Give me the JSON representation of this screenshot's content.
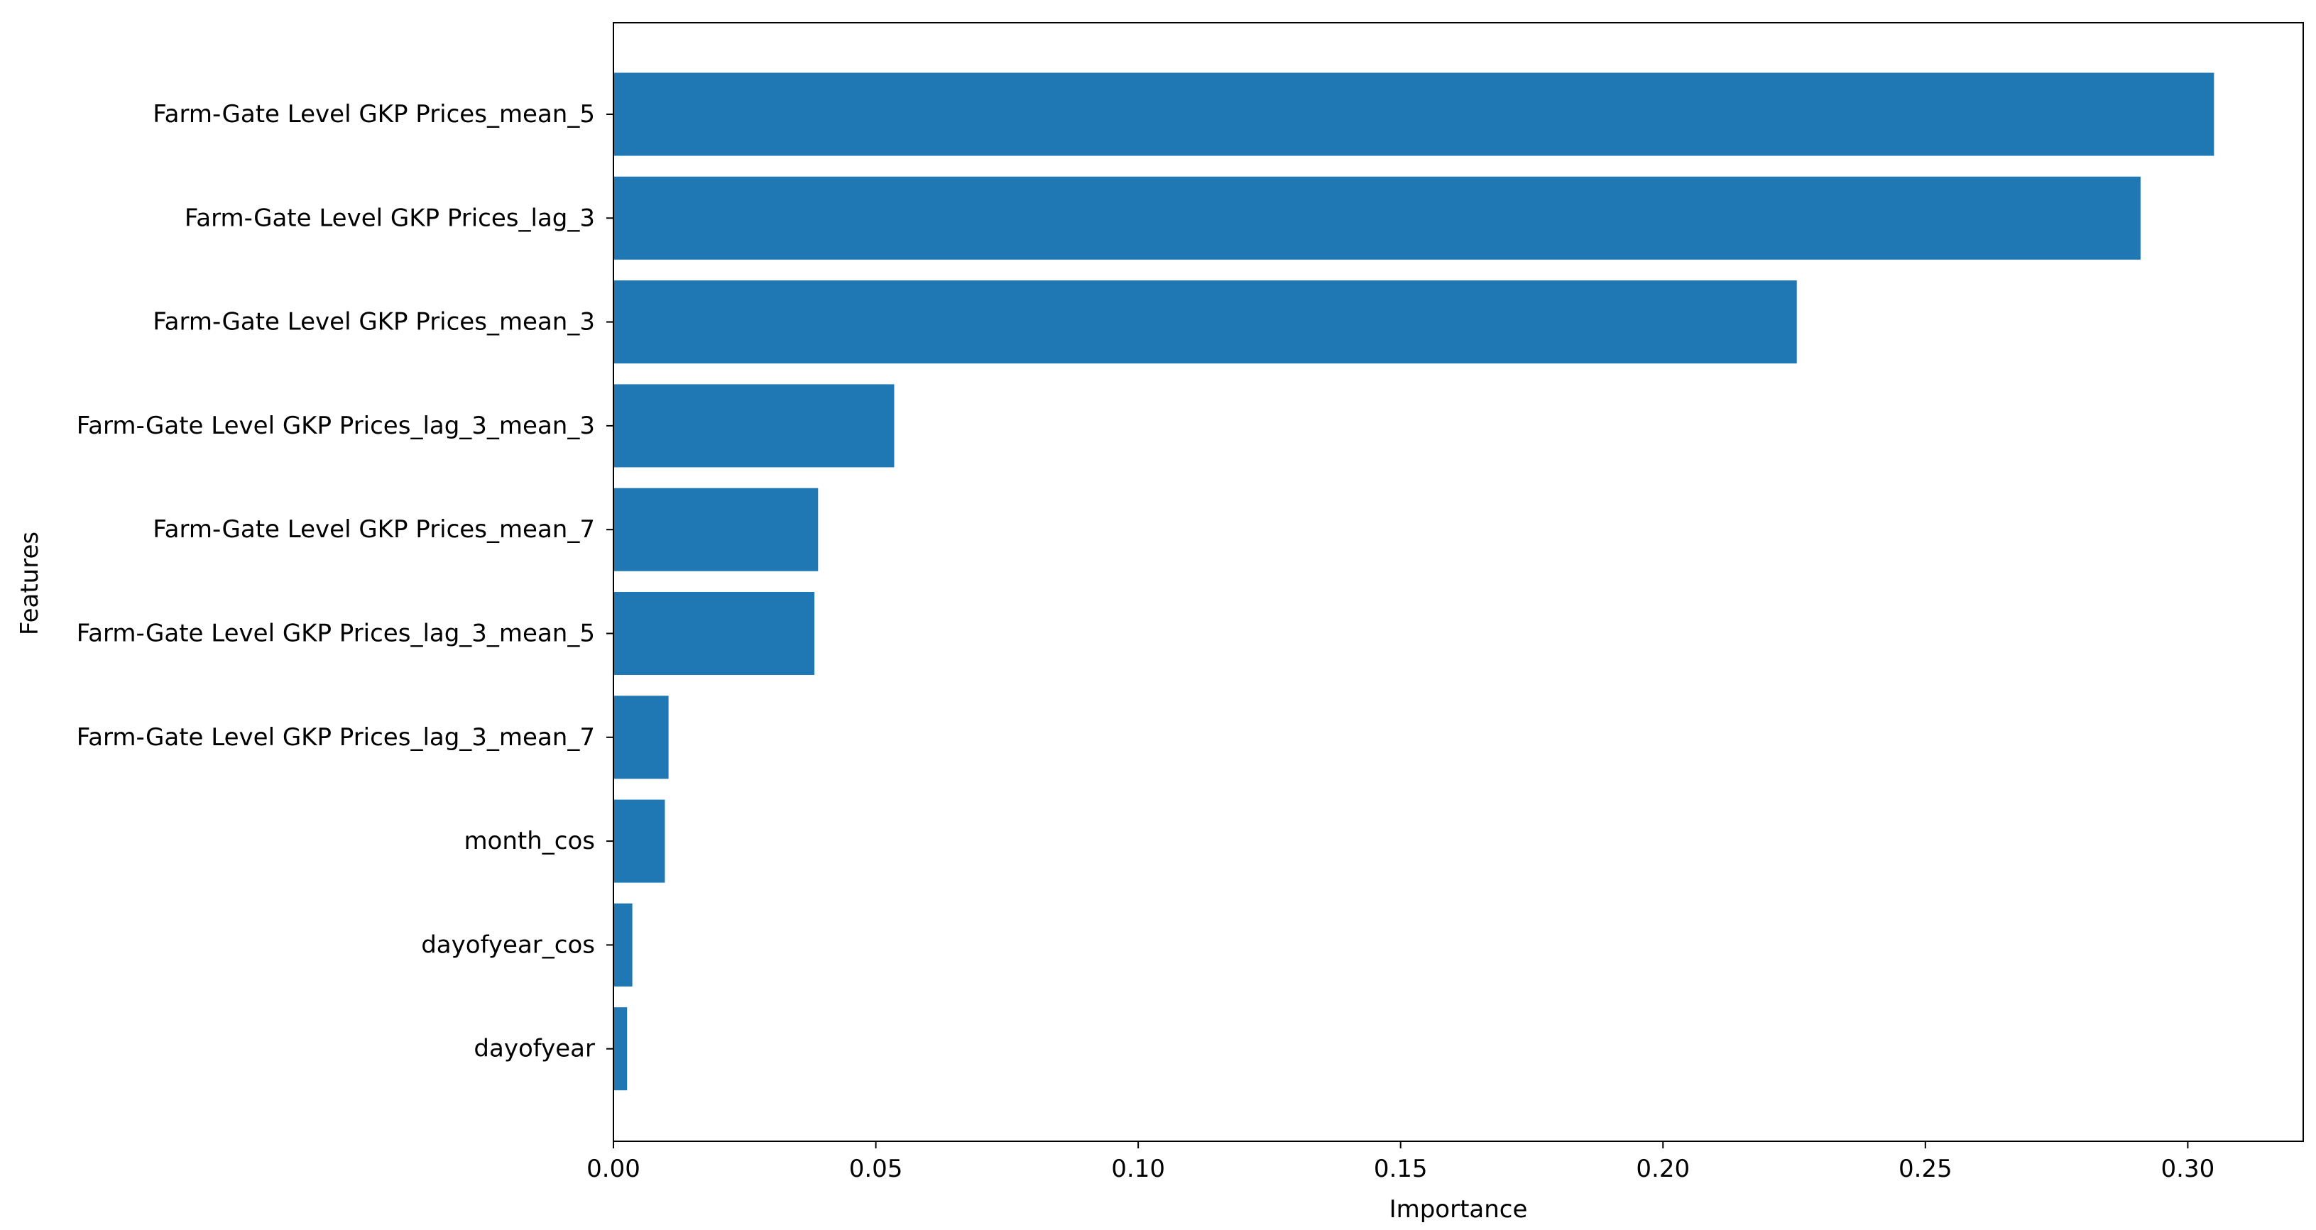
{
  "chart_data": {
    "type": "bar",
    "orientation": "horizontal",
    "title": "",
    "xlabel": "Importance",
    "ylabel": "Features",
    "xlim": [
      0,
      0.322
    ],
    "x_ticks": [
      0.0,
      0.05,
      0.1,
      0.15,
      0.2,
      0.25,
      0.3
    ],
    "x_tick_labels": [
      "0.00",
      "0.05",
      "0.10",
      "0.15",
      "0.20",
      "0.25",
      "0.30"
    ],
    "grid": false,
    "bar_color": "#1f77b4",
    "categories": [
      "Farm-Gate Level GKP Prices_mean_5",
      "Farm-Gate Level GKP Prices_lag_3",
      "Farm-Gate Level GKP Prices_mean_3",
      "Farm-Gate Level GKP Prices_lag_3_mean_3",
      "Farm-Gate Level GKP Prices_mean_7",
      "Farm-Gate Level GKP Prices_lag_3_mean_5",
      "Farm-Gate Level GKP Prices_lag_3_mean_7",
      "month_cos",
      "dayofyear_cos",
      "dayofyear"
    ],
    "values": [
      0.305,
      0.291,
      0.2255,
      0.0535,
      0.039,
      0.0383,
      0.0105,
      0.0098,
      0.0036,
      0.0026
    ]
  }
}
